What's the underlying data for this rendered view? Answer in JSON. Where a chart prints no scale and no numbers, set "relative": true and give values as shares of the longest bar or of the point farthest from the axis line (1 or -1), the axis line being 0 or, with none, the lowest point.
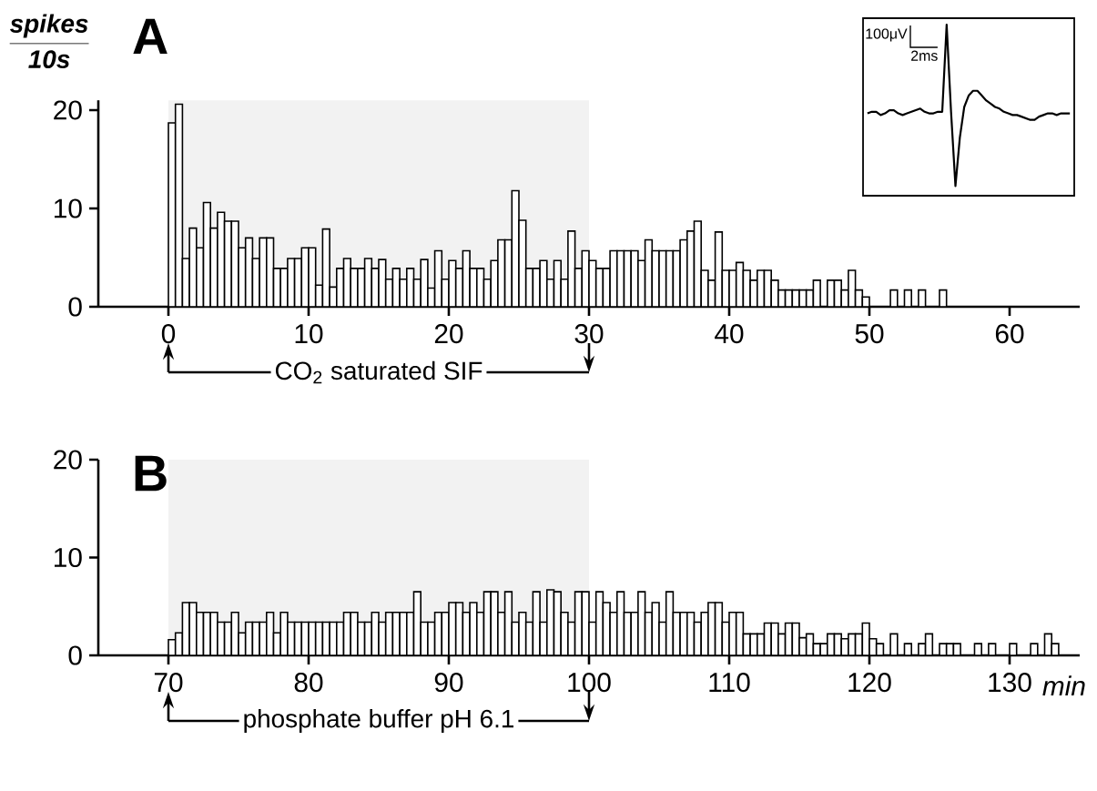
{
  "chart_data": [
    {
      "type": "histogram",
      "title": "A",
      "ylabel": "\\frac{\\textbf{\\textit{spikes}}}{\\textbf{\\textit{10s}}}",
      "color": "#000000",
      "bins": [
        0,
        0.5,
        1,
        1.5,
        2,
        2.5,
        3,
        3.5,
        4,
        4.5,
        5,
        5.5,
        6,
        6.5,
        7,
        7.5,
        8,
        8.5,
        9,
        9.5,
        10,
        10.5,
        11,
        11.5,
        12,
        12.5,
        13,
        13.5,
        14,
        14.5,
        15,
        15.5,
        16,
        16.5,
        17,
        17.5,
        18,
        18.5,
        19,
        19.5,
        20,
        20.5,
        21,
        21.5,
        22,
        22.5,
        23,
        23.5,
        24,
        24.5,
        25,
        25.5,
        26,
        26.5,
        27,
        27.5,
        28,
        28.5,
        29,
        29.5,
        30,
        30.5,
        31,
        31.5,
        32,
        32.5,
        33,
        33.5,
        34,
        34.5,
        35,
        35.5,
        36,
        36.5,
        37,
        37.5,
        38,
        38.5,
        39,
        39.5,
        40,
        40.5,
        41,
        41.5,
        42,
        42.5,
        43,
        43.5,
        44,
        44.5,
        45,
        45.5,
        46,
        46.5,
        47,
        47.5,
        48,
        48.5,
        49,
        49.5,
        50,
        50.5,
        51,
        51.5,
        52,
        52.5,
        53,
        53.5,
        54,
        54.5,
        55,
        55.5
      ],
      "values": [
        18.7,
        20.6,
        4.9,
        8.0,
        6.0,
        10.6,
        8.0,
        9.6,
        8.7,
        8.7,
        6.0,
        7.0,
        4.9,
        7.0,
        7.0,
        3.9,
        3.9,
        4.9,
        4.9,
        6.0,
        6.0,
        2.2,
        7.9,
        2.0,
        3.9,
        4.9,
        3.9,
        3.9,
        4.9,
        3.9,
        4.8,
        2.8,
        3.9,
        2.8,
        3.9,
        2.8,
        4.8,
        1.9,
        5.7,
        2.8,
        4.7,
        3.9,
        5.7,
        3.9,
        3.9,
        2.8,
        4.7,
        6.8,
        6.8,
        11.8,
        8.8,
        3.9,
        3.9,
        4.7,
        2.8,
        4.7,
        2.8,
        7.7,
        3.9,
        5.7,
        4.7,
        3.9,
        3.9,
        5.7,
        5.7,
        5.7,
        5.7,
        4.7,
        6.8,
        5.7,
        5.7,
        5.7,
        5.7,
        6.8,
        7.7,
        8.7,
        3.7,
        2.7,
        7.6,
        3.7,
        3.7,
        4.5,
        3.7,
        2.7,
        3.7,
        3.7,
        2.7,
        1.7,
        1.7,
        1.7,
        1.7,
        1.7,
        2.7,
        0,
        2.7,
        2.7,
        1.7,
        3.7,
        1.7,
        1,
        0,
        0,
        0,
        1.7,
        0,
        1.7,
        0,
        1.7,
        0,
        0,
        1.7
      ],
      "xlim": [
        -5,
        65
      ],
      "xticks": [
        0,
        10,
        20,
        30,
        40,
        50,
        60
      ],
      "ylim": [
        0,
        21
      ],
      "yticks": [
        0,
        10,
        20
      ],
      "bands": [
        {
          "axis": "x",
          "from": 0,
          "to": 30,
          "label": "CO$_{2}$ saturated SIF"
        }
      ]
    },
    {
      "type": "line",
      "relative": true,
      "color": "#000000",
      "categories": [
        null,
        null,
        null,
        null,
        null,
        null,
        null,
        null,
        null,
        null,
        null,
        null,
        null,
        null,
        null,
        null,
        null,
        null,
        null,
        null,
        null,
        null,
        null,
        null,
        null,
        null,
        null,
        null,
        null,
        null,
        null,
        null,
        null,
        null,
        null,
        null,
        null,
        null,
        null,
        null,
        null,
        null,
        null,
        null,
        null,
        null,
        null
      ],
      "values": [
        0.45,
        0.46,
        0.46,
        0.44,
        0.45,
        0.47,
        0.47,
        0.45,
        0.44,
        0.45,
        0.46,
        0.47,
        0.48,
        0.46,
        0.45,
        0.45,
        0.46,
        0.46,
        1.0,
        0.46,
        0,
        0.3,
        0.49,
        0.56,
        0.59,
        0.59,
        0.56,
        0.53,
        0.51,
        0.49,
        0.48,
        0.46,
        0.45,
        0.44,
        0.44,
        0.43,
        0.42,
        0.41,
        0.41,
        0.43,
        0.44,
        0.45,
        0.45,
        0.44,
        0.45,
        0.45,
        0.45
      ],
      "annotations": [
        "100μV",
        "2ms"
      ]
    },
    {
      "type": "histogram",
      "title": "B",
      "xlabel": "min",
      "color": "#000000",
      "bins": [
        70,
        70.5,
        71,
        71.5,
        72,
        72.5,
        73,
        73.5,
        74,
        74.5,
        75,
        75.5,
        76,
        76.5,
        77,
        77.5,
        78,
        78.5,
        79,
        79.5,
        80,
        80.5,
        81,
        81.5,
        82,
        82.5,
        83,
        83.5,
        84,
        84.5,
        85,
        85.5,
        86,
        86.5,
        87,
        87.5,
        88,
        88.5,
        89,
        89.5,
        90,
        90.5,
        91,
        91.5,
        92,
        92.5,
        93,
        93.5,
        94,
        94.5,
        95,
        95.5,
        96,
        96.5,
        97,
        97.5,
        98,
        98.5,
        99,
        99.5,
        100,
        100.5,
        101,
        101.5,
        102,
        102.5,
        103,
        103.5,
        104,
        104.5,
        105,
        105.5,
        106,
        106.5,
        107,
        107.5,
        108,
        108.5,
        109,
        109.5,
        110,
        110.5,
        111,
        111.5,
        112,
        112.5,
        113,
        113.5,
        114,
        114.5,
        115,
        115.5,
        116,
        116.5,
        117,
        117.5,
        118,
        118.5,
        119,
        119.5,
        120,
        120.5,
        121,
        121.5,
        122,
        122.5,
        123,
        123.5,
        124,
        124.5,
        125,
        125.5,
        126,
        126.5,
        127,
        127.5,
        128,
        128.5,
        129,
        129.5,
        130,
        130.5,
        131,
        131.5,
        132,
        132.5,
        133,
        133.5
      ],
      "values": [
        1.6,
        2.3,
        5.4,
        5.4,
        4.4,
        4.4,
        4.4,
        3.4,
        3.4,
        4.4,
        2.3,
        3.4,
        3.4,
        3.4,
        4.4,
        2.3,
        4.4,
        3.4,
        3.4,
        3.4,
        3.4,
        3.4,
        3.4,
        3.4,
        3.4,
        4.4,
        4.4,
        3.4,
        3.4,
        4.4,
        3.4,
        4.4,
        4.4,
        4.4,
        4.4,
        6.5,
        3.4,
        3.4,
        4.4,
        4.4,
        5.4,
        5.4,
        4.4,
        5.4,
        4.4,
        6.5,
        6.5,
        4.4,
        6.5,
        3.4,
        4.4,
        3.4,
        6.5,
        3.4,
        6.7,
        6.5,
        4.4,
        3.4,
        6.5,
        6.5,
        3.4,
        6.5,
        5.4,
        4.4,
        6.5,
        4.4,
        4.4,
        6.5,
        4.4,
        5.4,
        3.4,
        6.5,
        4.4,
        4.4,
        4.4,
        3.4,
        4.4,
        5.4,
        5.4,
        3.4,
        4.4,
        4.4,
        2.2,
        2.2,
        2.2,
        3.3,
        3.3,
        2.2,
        3.3,
        3.3,
        1.8,
        2.2,
        1.2,
        1.2,
        2.2,
        2.2,
        1.7,
        2.2,
        2.2,
        3.3,
        1.7,
        1.2,
        0,
        2.2,
        0,
        1.2,
        0,
        1.2,
        2.2,
        0,
        1.2,
        1.2,
        1.2,
        0,
        0,
        1.2,
        0,
        1.2,
        0,
        0,
        1.2,
        0,
        0,
        1.2,
        0,
        2.2,
        1.2
      ],
      "xlim": [
        65,
        135
      ],
      "xticks": [
        70,
        80,
        90,
        100,
        110,
        120,
        130
      ],
      "ylim": [
        0,
        20
      ],
      "yticks": [
        0,
        10,
        20
      ],
      "bands": [
        {
          "axis": "x",
          "from": 70,
          "to": 100,
          "label": "phosphate buffer pH 6.1"
        }
      ]
    }
  ]
}
